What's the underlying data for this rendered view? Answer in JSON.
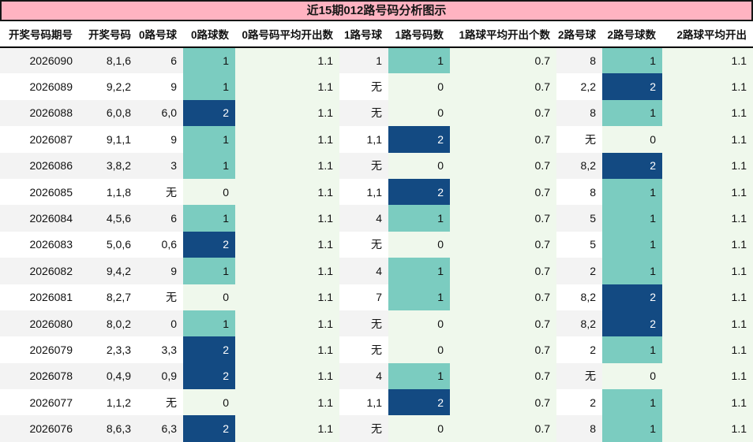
{
  "title": "近15期012路号码分析图示",
  "colors": {
    "title_bg": "#ffb3c1",
    "title_text": "#161616",
    "row_alt_bg": "#f3f3f3",
    "avg_column_bg": "#eff8ec",
    "count_zero_bg": "#eff8ec",
    "count_one_bg": "#7bccc0",
    "count_two_bg": "#134a82",
    "count_two_text": "#ffffff",
    "header_divider": "#000000"
  },
  "chart_data": {
    "type": "table",
    "title": "近15期012路号码分析图示",
    "columns": [
      "开奖号码期号",
      "开奖号码",
      "0路号球",
      "0路球数",
      "0路号码平均开出数",
      "1路号球",
      "1路号码数",
      "1路球平均开出个数",
      "2路号球",
      "2路号球数",
      "2路球平均开出"
    ],
    "rows": [
      [
        "2026090",
        "8,1,6",
        "6",
        "1",
        "1.1",
        "1",
        "1",
        "0.7",
        "8",
        "1",
        "1.1"
      ],
      [
        "2026089",
        "9,2,2",
        "9",
        "1",
        "1.1",
        "无",
        "0",
        "0.7",
        "2,2",
        "2",
        "1.1"
      ],
      [
        "2026088",
        "6,0,8",
        "6,0",
        "2",
        "1.1",
        "无",
        "0",
        "0.7",
        "8",
        "1",
        "1.1"
      ],
      [
        "2026087",
        "9,1,1",
        "9",
        "1",
        "1.1",
        "1,1",
        "2",
        "0.7",
        "无",
        "0",
        "1.1"
      ],
      [
        "2026086",
        "3,8,2",
        "3",
        "1",
        "1.1",
        "无",
        "0",
        "0.7",
        "8,2",
        "2",
        "1.1"
      ],
      [
        "2026085",
        "1,1,8",
        "无",
        "0",
        "1.1",
        "1,1",
        "2",
        "0.7",
        "8",
        "1",
        "1.1"
      ],
      [
        "2026084",
        "4,5,6",
        "6",
        "1",
        "1.1",
        "4",
        "1",
        "0.7",
        "5",
        "1",
        "1.1"
      ],
      [
        "2026083",
        "5,0,6",
        "0,6",
        "2",
        "1.1",
        "无",
        "0",
        "0.7",
        "5",
        "1",
        "1.1"
      ],
      [
        "2026082",
        "9,4,2",
        "9",
        "1",
        "1.1",
        "4",
        "1",
        "0.7",
        "2",
        "1",
        "1.1"
      ],
      [
        "2026081",
        "8,2,7",
        "无",
        "0",
        "1.1",
        "7",
        "1",
        "0.7",
        "8,2",
        "2",
        "1.1"
      ],
      [
        "2026080",
        "8,0,2",
        "0",
        "1",
        "1.1",
        "无",
        "0",
        "0.7",
        "8,2",
        "2",
        "1.1"
      ],
      [
        "2026079",
        "2,3,3",
        "3,3",
        "2",
        "1.1",
        "无",
        "0",
        "0.7",
        "2",
        "1",
        "1.1"
      ],
      [
        "2026078",
        "0,4,9",
        "0,9",
        "2",
        "1.1",
        "4",
        "1",
        "0.7",
        "无",
        "0",
        "1.1"
      ],
      [
        "2026077",
        "1,1,2",
        "无",
        "0",
        "1.1",
        "1,1",
        "2",
        "0.7",
        "2",
        "1",
        "1.1"
      ],
      [
        "2026076",
        "8,6,3",
        "6,3",
        "2",
        "1.1",
        "无",
        "0",
        "0.7",
        "8",
        "1",
        "1.1"
      ]
    ]
  }
}
